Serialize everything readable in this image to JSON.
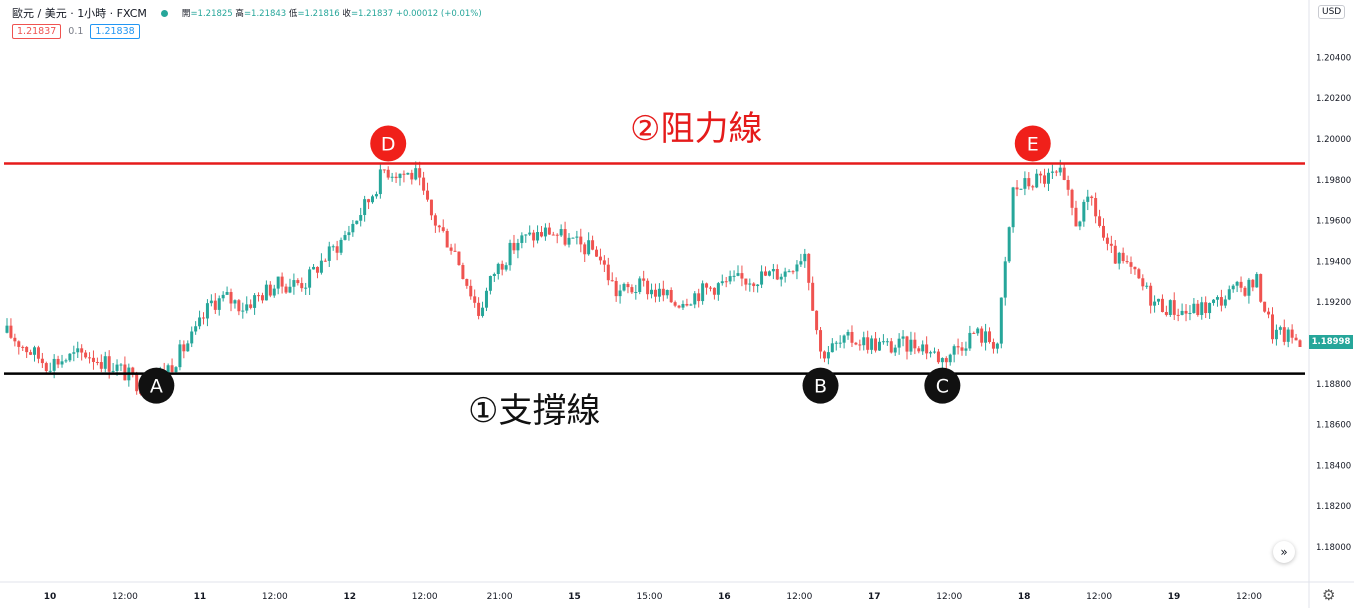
{
  "header": {
    "symbol": "歐元 / 美元 · 1小時 · FXCM",
    "ohlc": {
      "open_label": "開",
      "open": "=1.21825",
      "high_label": "高",
      "high": "=1.21843",
      "low_label": "低",
      "low": "=1.21816",
      "close_label": "收",
      "close": "=1.21837",
      "change": "+0.00012 (+0.01%)"
    },
    "sell_price": "1.21837",
    "spread": "0.1",
    "buy_price": "1.21838"
  },
  "currency_button": "USD",
  "last_price_label": "1.18998",
  "scroll_icon_glyph": "»",
  "settings_icon_glyph": "⚙",
  "colors": {
    "up": "#26a69a",
    "down": "#ef5350",
    "resistance": "#e51b1b",
    "support": "#000000",
    "marker_red": "#f0201a",
    "marker_black": "#111111"
  },
  "chart_data": {
    "type": "candlestick",
    "y_axis_position": "right",
    "y_ticks": [
      "1.18000",
      "1.18200",
      "1.18400",
      "1.18600",
      "1.18800",
      "1.19000",
      "1.19200",
      "1.19400",
      "1.19600",
      "1.19800",
      "1.20000",
      "1.20200",
      "1.20400"
    ],
    "x_ticks": [
      "10",
      "12:00",
      "11",
      "12:00",
      "12",
      "12:00",
      "21:00",
      "15",
      "15:00",
      "16",
      "12:00",
      "17",
      "12:00",
      "18",
      "12:00",
      "19",
      "12:00"
    ],
    "support_line": {
      "value": 1.1885,
      "label": "①支撐線"
    },
    "resistance_line": {
      "value": 1.1988,
      "label": "②阻力線"
    },
    "markers": [
      {
        "label": "A",
        "index": 38,
        "kind": "support"
      },
      {
        "label": "B",
        "index": 207,
        "kind": "support"
      },
      {
        "label": "C",
        "index": 238,
        "kind": "support"
      },
      {
        "label": "D",
        "index": 97,
        "kind": "resistance"
      },
      {
        "label": "E",
        "index": 261,
        "kind": "resistance"
      }
    ],
    "close_path": [
      [
        0,
        1.1905
      ],
      [
        10,
        1.189
      ],
      [
        20,
        1.1895
      ],
      [
        28,
        1.1888
      ],
      [
        35,
        1.1878
      ],
      [
        42,
        1.189
      ],
      [
        48,
        1.1905
      ],
      [
        52,
        1.192
      ],
      [
        56,
        1.1922
      ],
      [
        60,
        1.1918
      ],
      [
        68,
        1.1928
      ],
      [
        76,
        1.193
      ],
      [
        80,
        1.194
      ],
      [
        85,
        1.195
      ],
      [
        92,
        1.197
      ],
      [
        96,
        1.1985
      ],
      [
        104,
        1.1982
      ],
      [
        108,
        1.1962
      ],
      [
        114,
        1.1945
      ],
      [
        120,
        1.1915
      ],
      [
        124,
        1.1935
      ],
      [
        130,
        1.195
      ],
      [
        138,
        1.1955
      ],
      [
        145,
        1.1948
      ],
      [
        150,
        1.1945
      ],
      [
        155,
        1.1925
      ],
      [
        162,
        1.1928
      ],
      [
        170,
        1.192
      ],
      [
        180,
        1.1928
      ],
      [
        190,
        1.1932
      ],
      [
        198,
        1.1935
      ],
      [
        203,
        1.1945
      ],
      [
        207,
        1.1895
      ],
      [
        215,
        1.1902
      ],
      [
        225,
        1.1898
      ],
      [
        232,
        1.19
      ],
      [
        238,
        1.1892
      ],
      [
        246,
        1.1905
      ],
      [
        252,
        1.19
      ],
      [
        256,
        1.1975
      ],
      [
        262,
        1.198
      ],
      [
        268,
        1.1982
      ],
      [
        272,
        1.196
      ],
      [
        276,
        1.197
      ],
      [
        280,
        1.1945
      ],
      [
        286,
        1.1935
      ],
      [
        292,
        1.192
      ],
      [
        300,
        1.1915
      ],
      [
        306,
        1.1918
      ],
      [
        312,
        1.1925
      ],
      [
        318,
        1.193
      ],
      [
        322,
        1.1905
      ],
      [
        328,
        1.1902
      ]
    ]
  }
}
